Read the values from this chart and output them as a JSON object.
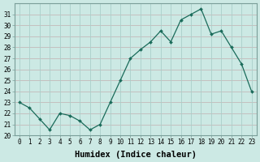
{
  "x": [
    0,
    1,
    2,
    3,
    4,
    5,
    6,
    7,
    8,
    9,
    10,
    11,
    12,
    13,
    14,
    15,
    16,
    17,
    18,
    19,
    20,
    21,
    22,
    23
  ],
  "y": [
    23.0,
    22.5,
    21.5,
    20.5,
    22.0,
    21.8,
    21.3,
    20.5,
    21.0,
    23.0,
    25.0,
    27.0,
    27.8,
    28.5,
    29.5,
    28.5,
    30.5,
    31.0,
    31.5,
    29.2,
    29.5,
    28.0,
    26.5,
    24.0
  ],
  "line_color": "#1a6b5a",
  "marker_color": "#1a6b5a",
  "bg_color": "#cce9e4",
  "grid_h_color": "#c4b8b8",
  "grid_v_color": "#aacfca",
  "xlabel": "Humidex (Indice chaleur)",
  "ylim": [
    20,
    32
  ],
  "xlim": [
    -0.5,
    23.5
  ],
  "yticks": [
    20,
    21,
    22,
    23,
    24,
    25,
    26,
    27,
    28,
    29,
    30,
    31
  ],
  "xticks": [
    0,
    1,
    2,
    3,
    4,
    5,
    6,
    7,
    8,
    9,
    10,
    11,
    12,
    13,
    14,
    15,
    16,
    17,
    18,
    19,
    20,
    21,
    22,
    23
  ],
  "tick_fontsize": 5.5,
  "xlabel_fontsize": 7.5
}
